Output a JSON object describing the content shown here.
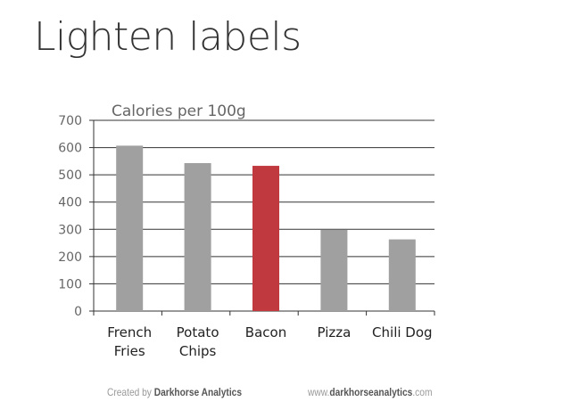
{
  "title": "Lighten labels",
  "chart_data": {
    "type": "bar",
    "title": "Calories per 100g",
    "categories": [
      "French\nFries",
      "Potato\nChips",
      "Bacon",
      "Pizza",
      "Chili Dog"
    ],
    "values": [
      607,
      543,
      533,
      298,
      263
    ],
    "highlight_index": 2,
    "colors": {
      "bar": "#a0a0a0",
      "highlight": "#c0393f",
      "grid": "#333333",
      "label": "#222222",
      "tick": "#555555"
    },
    "yticks": [
      0,
      100,
      200,
      300,
      400,
      500,
      600,
      700
    ],
    "ylim": [
      0,
      700
    ],
    "xlabel": "",
    "ylabel": "",
    "grid": true
  },
  "footer": {
    "created_prefix": "Created by ",
    "created_brand": "Darkhorse Analytics",
    "url_prefix": "www.",
    "url_brand": "darkhorseanalytics",
    "url_suffix": ".com"
  }
}
